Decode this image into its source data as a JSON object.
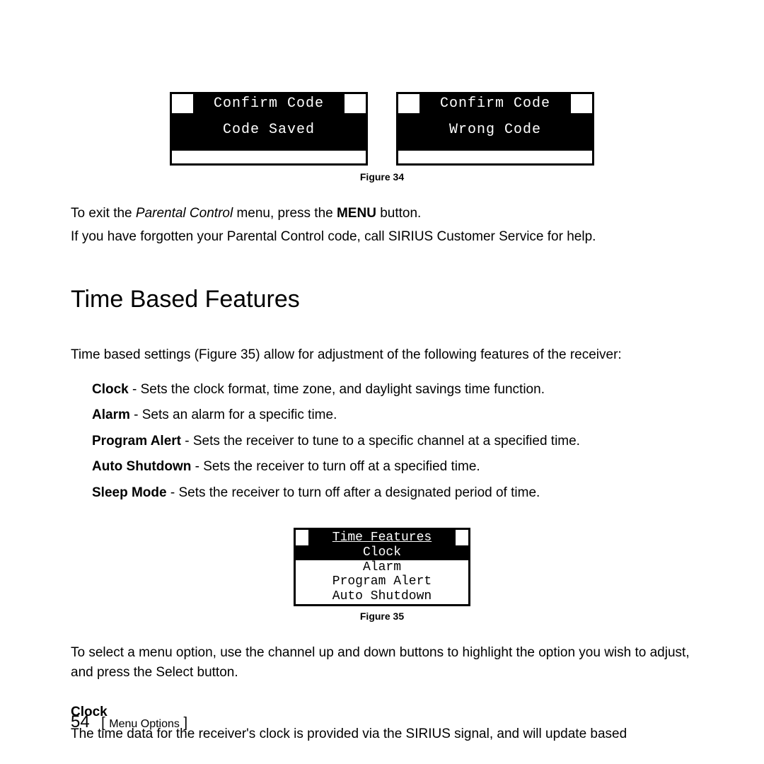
{
  "figure34": {
    "left_title": "Confirm Code",
    "left_msg": "Code Saved",
    "right_title": "Confirm Code",
    "right_msg": "Wrong Code",
    "caption": "Figure 34"
  },
  "para1_a": "To exit the ",
  "para1_italic": "Parental Control",
  "para1_b": " menu, press the ",
  "para1_bold": "MENU",
  "para1_c": " button.",
  "para2": "If you have forgotten your Parental Control code, call SIRIUS Customer Service for help.",
  "section_heading": "Time Based Features",
  "intro": "Time based settings (Figure 35) allow for adjustment of the following features of the receiver:",
  "features": {
    "clock_label": "Clock",
    "clock_desc": " - Sets the clock format, time zone, and daylight savings time function.",
    "alarm_label": "Alarm",
    "alarm_desc": " - Sets an alarm for a specific time.",
    "program_label": "Program Alert",
    "program_desc": " - Sets the receiver to tune to a specific channel at a specified time.",
    "auto_label": "Auto Shutdown",
    "auto_desc": " - Sets the receiver to turn off at a specified time.",
    "sleep_label": "Sleep Mode",
    "sleep_desc": " - Sets the receiver to turn off after a designated period of time."
  },
  "figure35": {
    "title": "Time Features",
    "row1": "Clock",
    "row2": "Alarm",
    "row3": "Program Alert",
    "row4": "Auto Shutdown",
    "caption": "Figure 35"
  },
  "para3": "To select a menu option, use the channel up and down buttons to highlight the option you wish to adjust, and press the Select button.",
  "clock_sub": "Clock",
  "clock_para": "The time data for the receiver's clock is provided via the SIRIUS signal, and will update based",
  "footer": {
    "page": "54",
    "section": "Menu Options"
  }
}
